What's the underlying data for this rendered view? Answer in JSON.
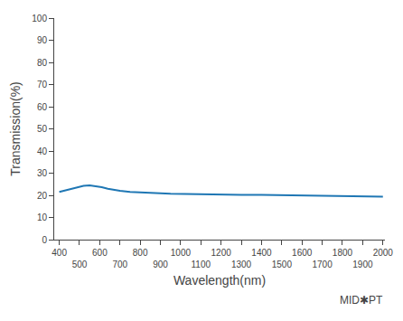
{
  "chart_data": {
    "type": "line",
    "xlabel": "Wavelength(nm)",
    "ylabel": "Transmission(%)",
    "x": [
      400,
      430,
      460,
      490,
      520,
      550,
      580,
      610,
      640,
      670,
      700,
      750,
      800,
      850,
      900,
      950,
      1000,
      1100,
      1200,
      1300,
      1400,
      1500,
      1600,
      1700,
      1800,
      1850,
      1900,
      1950,
      2000
    ],
    "values": [
      21.5,
      22.2,
      23.0,
      23.8,
      24.3,
      24.5,
      24.2,
      23.7,
      23.0,
      22.5,
      22.0,
      21.5,
      21.2,
      21.0,
      20.9,
      20.7,
      20.6,
      20.4,
      20.3,
      20.2,
      20.2,
      20.1,
      20.1,
      20.0,
      19.9,
      19.8,
      19.7,
      19.5,
      19.4
    ],
    "xlim": [
      375,
      2010
    ],
    "ylim": [
      0,
      100
    ],
    "xticks": [
      400,
      500,
      600,
      700,
      800,
      900,
      1000,
      1100,
      1200,
      1300,
      1400,
      1500,
      1600,
      1700,
      1800,
      1900,
      2000
    ],
    "yticks": [
      0,
      10,
      20,
      30,
      40,
      50,
      60,
      70,
      80,
      90,
      100
    ],
    "grid": false,
    "annotations": [
      "MID✱PT"
    ]
  }
}
